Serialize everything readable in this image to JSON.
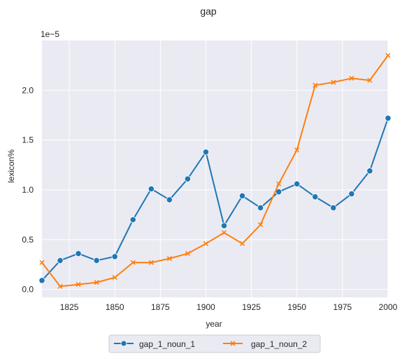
{
  "chart_data": {
    "type": "line",
    "title": "gap",
    "xlabel": "year",
    "ylabel": "lexicon%",
    "y_offset_label": "1e−5",
    "xlim": [
      1810,
      2000
    ],
    "ylim": [
      -0.08,
      2.5
    ],
    "y_scale_note": "values in units of 1e-5",
    "x_ticks": [
      1825,
      1850,
      1875,
      1900,
      1925,
      1950,
      1975,
      2000
    ],
    "y_ticks": [
      0.0,
      0.5,
      1.0,
      1.5,
      2.0
    ],
    "y_tick_labels": [
      "0.0",
      "0.5",
      "1.0",
      "1.5",
      "2.0"
    ],
    "grid": true,
    "legend_position": "bottom-center",
    "x": [
      1810,
      1820,
      1830,
      1840,
      1850,
      1860,
      1870,
      1880,
      1890,
      1900,
      1910,
      1920,
      1930,
      1940,
      1950,
      1960,
      1970,
      1980,
      1990,
      2000
    ],
    "series": [
      {
        "name": "gap_1_noun_1",
        "color": "#1f77b4",
        "marker": "circle",
        "values": [
          0.09,
          0.29,
          0.36,
          0.29,
          0.33,
          0.7,
          1.01,
          0.9,
          1.11,
          1.38,
          0.64,
          0.94,
          0.82,
          0.98,
          1.06,
          0.93,
          0.82,
          0.96,
          1.19,
          1.72
        ]
      },
      {
        "name": "gap_1_noun_2",
        "color": "#ff7f0e",
        "marker": "x",
        "values": [
          0.27,
          0.03,
          0.05,
          0.07,
          0.12,
          0.27,
          0.27,
          0.31,
          0.36,
          0.46,
          0.57,
          0.46,
          0.65,
          1.06,
          1.4,
          2.05,
          2.08,
          2.12,
          2.1,
          2.35
        ]
      }
    ]
  }
}
